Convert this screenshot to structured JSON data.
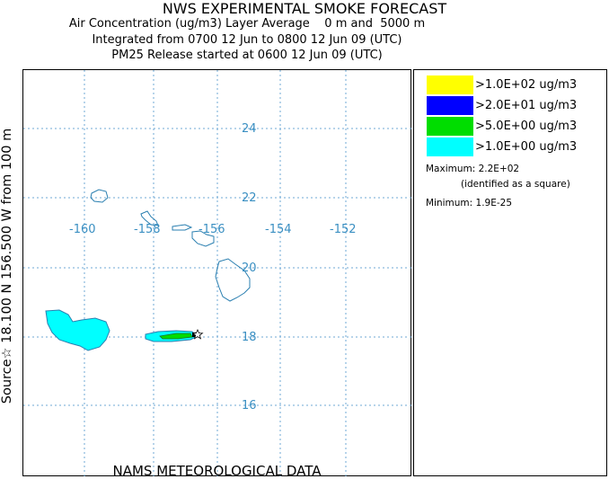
{
  "header": {
    "title": "NWS EXPERIMENTAL SMOKE FORECAST",
    "line1": "Air Concentration (ug/m3) Layer Average    0 m and  5000 m",
    "line2": "Integrated from 0700 12 Jun to 0800 12 Jun 09 (UTC)",
    "line3": "PM25 Release started at 0600 12 Jun 09 (UTC)"
  },
  "side_label": "Source☆ 18.100 N 156.500  W      from  100 m",
  "footer": "NAMS METEOROLOGICAL DATA",
  "map": {
    "lat_labels": [
      "24",
      "22",
      "20",
      "18",
      "16"
    ],
    "lon_labels": [
      "-160",
      "-158",
      "-156",
      "-154",
      "-152"
    ],
    "grid_color": "#6fa8d6",
    "label_color": "#3a8fc2",
    "coast_color": "#2a7fb0",
    "source_marker": "star-icon"
  },
  "legend": {
    "items": [
      {
        "label": ">1.0E+02 ug/m3",
        "color": "#ffff00"
      },
      {
        "label": ">2.0E+01 ug/m3",
        "color": "#0000ff"
      },
      {
        "label": ">5.0E+00 ug/m3",
        "color": "#00dd00"
      },
      {
        "label": ">1.0E+00 ug/m3",
        "color": "#00ffff"
      }
    ],
    "maximum": "Maximum: 2.2E+02",
    "maximum_note": "(identified as a square)",
    "minimum": "Minimum: 1.9E-25"
  }
}
